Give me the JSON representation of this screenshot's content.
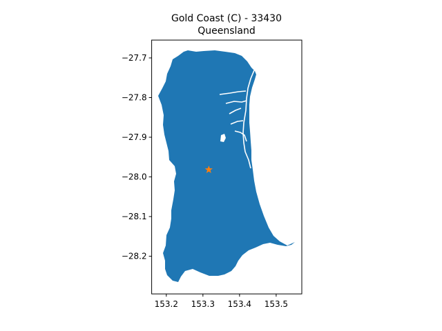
{
  "chart_data": {
    "type": "map",
    "title": "Gold Coast (C) - 33430",
    "subtitle": "Queensland",
    "xlabel": "",
    "ylabel": "",
    "xlim": [
      153.16,
      153.57
    ],
    "ylim": [
      -28.295,
      -27.655
    ],
    "x_ticks": [
      {
        "value": 153.2,
        "label": "153.2"
      },
      {
        "value": 153.3,
        "label": "153.3"
      },
      {
        "value": 153.4,
        "label": "153.4"
      },
      {
        "value": 153.5,
        "label": "153.5"
      }
    ],
    "y_ticks": [
      {
        "value": -27.7,
        "label": "−27.7"
      },
      {
        "value": -27.8,
        "label": "−27.8"
      },
      {
        "value": -27.9,
        "label": "−27.9"
      },
      {
        "value": -28.0,
        "label": "−28.0"
      },
      {
        "value": -28.1,
        "label": "−28.1"
      },
      {
        "value": -28.2,
        "label": "−28.2"
      }
    ],
    "region_fill": "#1f77b4",
    "marker": {
      "lon": 153.316,
      "lat": -27.982,
      "symbol": "star",
      "color": "#ff7f0e"
    },
    "grid": false
  }
}
